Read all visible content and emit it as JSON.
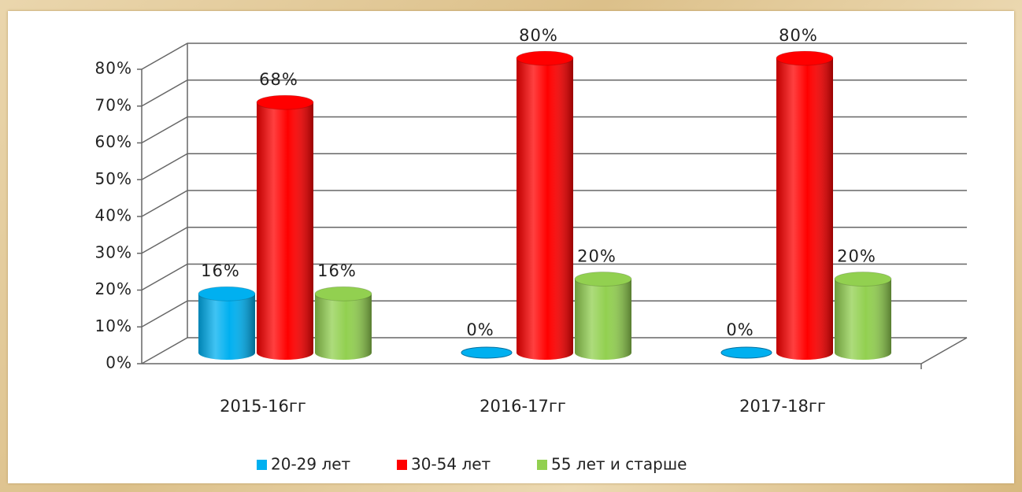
{
  "chart_data": {
    "type": "bar",
    "categories": [
      "2015-16гг",
      "2016-17гг",
      "2017-18гг"
    ],
    "series": [
      {
        "name": "20-29 лет",
        "color": "#00b0f0",
        "values": [
          16,
          0,
          0
        ],
        "value_labels": [
          "16%",
          "0%",
          "0%"
        ]
      },
      {
        "name": "30-54 лет",
        "color": "#ff0000",
        "values": [
          68,
          80,
          80
        ],
        "value_labels": [
          "68%",
          "80%",
          "80%"
        ]
      },
      {
        "name": "55 лет и старше",
        "color": "#92d050",
        "values": [
          16,
          20,
          20
        ],
        "value_labels": [
          "16%",
          "20%",
          "20%"
        ]
      }
    ],
    "ylim": [
      0,
      80
    ],
    "yticks": [
      {
        "value": 0,
        "label": "0%"
      },
      {
        "value": 10,
        "label": "10%"
      },
      {
        "value": 20,
        "label": "20%"
      },
      {
        "value": 30,
        "label": "30%"
      },
      {
        "value": 40,
        "label": "40%"
      },
      {
        "value": 50,
        "label": "50%"
      },
      {
        "value": 60,
        "label": "60%"
      },
      {
        "value": 70,
        "label": "70%"
      },
      {
        "value": 80,
        "label": "80%"
      }
    ],
    "grid": true,
    "legend": "bottom"
  }
}
